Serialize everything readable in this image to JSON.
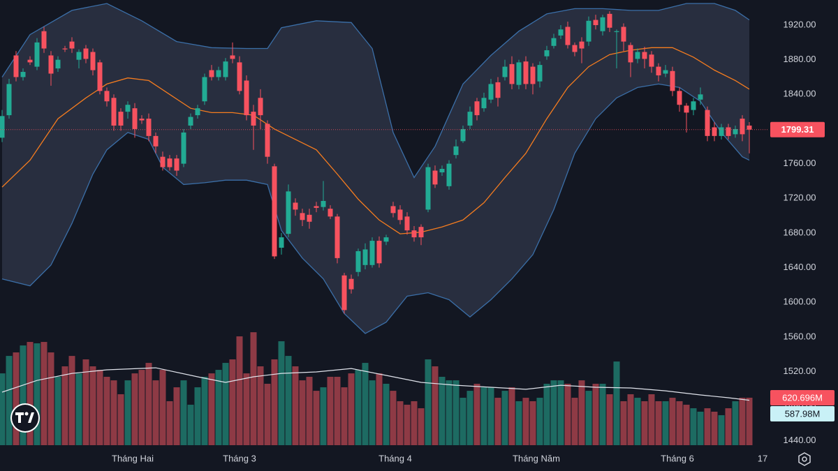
{
  "chart_data": {
    "type": "candlestick",
    "up_color": "#22ab94",
    "down_color": "#f7525f",
    "volume_up_color": "#1d6b62",
    "volume_down_color": "#8e3a45",
    "open": [
      1790,
      1816,
      1885,
      1860,
      1880,
      1872,
      1913,
      1885,
      1870,
      1893,
      1901,
      1880,
      1893,
      1889,
      1877,
      1844,
      1836,
      1820,
      1820,
      1824,
      1812,
      1812,
      1792,
      1768,
      1766,
      1766,
      1760,
      1804,
      1816,
      1832,
      1868,
      1860,
      1860,
      1885,
      1877,
      1856,
      1820,
      1836,
      1806,
      1757,
      1663,
      1679,
      1715,
      1703,
      1701,
      1711,
      1710,
      1708,
      1699,
      1631,
      1627,
      1635,
      1643,
      1643,
      1671,
      1670,
      1711,
      1707,
      1699,
      1683,
      1687,
      1707,
      1752,
      1750,
      1734,
      1770,
      1786,
      1804,
      1832,
      1824,
      1834,
      1854,
      1860,
      1875,
      1851,
      1878,
      1872,
      1855,
      1884,
      1896,
      1908,
      1918,
      1897,
      1901,
      1901,
      1926,
      1913,
      1933,
      1912,
      1918,
      1897,
      1881,
      1889,
      1886,
      1872,
      1864,
      1867,
      1844,
      1827,
      1822,
      1834,
      1822,
      1802,
      1792,
      1802,
      1794,
      1812,
      1804
    ],
    "high": [
      1822,
      1858,
      1890,
      1870,
      1884,
      1905,
      1918,
      1890,
      1884,
      1896,
      1906,
      1892,
      1897,
      1893,
      1880,
      1848,
      1840,
      1824,
      1832,
      1830,
      1816,
      1818,
      1796,
      1774,
      1770,
      1770,
      1800,
      1818,
      1828,
      1864,
      1874,
      1872,
      1882,
      1900,
      1884,
      1862,
      1828,
      1846,
      1810,
      1760,
      1680,
      1736,
      1720,
      1708,
      1708,
      1716,
      1740,
      1712,
      1702,
      1634,
      1632,
      1662,
      1668,
      1675,
      1676,
      1678,
      1716,
      1712,
      1704,
      1688,
      1690,
      1760,
      1758,
      1758,
      1764,
      1788,
      1804,
      1826,
      1836,
      1842,
      1858,
      1860,
      1880,
      1884,
      1880,
      1884,
      1876,
      1878,
      1896,
      1910,
      1920,
      1924,
      1900,
      1906,
      1930,
      1932,
      1932,
      1936,
      1915,
      1922,
      1900,
      1893,
      1895,
      1890,
      1876,
      1874,
      1872,
      1848,
      1830,
      1836,
      1848,
      1826,
      1808,
      1806,
      1806,
      1804,
      1816,
      1808
    ],
    "low": [
      1785,
      1812,
      1855,
      1856,
      1874,
      1868,
      1888,
      1850,
      1866,
      1889,
      1888,
      1870,
      1876,
      1862,
      1840,
      1826,
      1798,
      1798,
      1812,
      1790,
      1806,
      1786,
      1772,
      1752,
      1752,
      1746,
      1756,
      1800,
      1812,
      1828,
      1856,
      1856,
      1856,
      1876,
      1840,
      1810,
      1776,
      1800,
      1760,
      1650,
      1655,
      1675,
      1700,
      1688,
      1685,
      1704,
      1706,
      1696,
      1645,
      1587,
      1610,
      1630,
      1638,
      1640,
      1640,
      1666,
      1698,
      1690,
      1678,
      1670,
      1666,
      1704,
      1732,
      1746,
      1730,
      1766,
      1784,
      1800,
      1810,
      1820,
      1830,
      1826,
      1856,
      1846,
      1846,
      1846,
      1840,
      1848,
      1880,
      1893,
      1904,
      1893,
      1884,
      1876,
      1896,
      1915,
      1908,
      1912,
      1870,
      1890,
      1860,
      1876,
      1870,
      1865,
      1855,
      1860,
      1838,
      1820,
      1796,
      1816,
      1828,
      1786,
      1786,
      1788,
      1788,
      1790,
      1786,
      1772
    ],
    "close": [
      1815,
      1852,
      1860,
      1866,
      1877,
      1900,
      1893,
      1864,
      1880,
      1892,
      1893,
      1889,
      1881,
      1868,
      1844,
      1832,
      1804,
      1804,
      1828,
      1800,
      1810,
      1792,
      1780,
      1756,
      1756,
      1752,
      1796,
      1814,
      1824,
      1860,
      1860,
      1868,
      1878,
      1881,
      1844,
      1816,
      1804,
      1816,
      1768,
      1653,
      1675,
      1728,
      1707,
      1695,
      1693,
      1709,
      1717,
      1699,
      1651,
      1591,
      1615,
      1659,
      1661,
      1671,
      1645,
      1675,
      1703,
      1695,
      1683,
      1675,
      1675,
      1756,
      1736,
      1754,
      1760,
      1780,
      1800,
      1820,
      1816,
      1836,
      1852,
      1836,
      1872,
      1852,
      1877,
      1852,
      1852,
      1874,
      1891,
      1905,
      1915,
      1897,
      1889,
      1893,
      1925,
      1920,
      1929,
      1917,
      1913,
      1901,
      1877,
      1889,
      1881,
      1872,
      1862,
      1868,
      1844,
      1828,
      1819,
      1832,
      1840,
      1792,
      1792,
      1802,
      1792,
      1800,
      1794,
      1799.31
    ],
    "series": [
      {
        "name": "Volume",
        "axis": "y2",
        "last_label": "620.696M",
        "values": [
          939,
          1167,
          1213,
          1304,
          1350,
          1332,
          1350,
          1213,
          894,
          1031,
          1167,
          939,
          1122,
          1031,
          985,
          894,
          848,
          666,
          848,
          939,
          985,
          1076,
          848,
          985,
          575,
          757,
          848,
          529,
          757,
          894,
          939,
          985,
          1076,
          1122,
          1423,
          939,
          1477,
          1031,
          803,
          1122,
          1359,
          1167,
          1031,
          848,
          894,
          711,
          757,
          894,
          894,
          757,
          939,
          985,
          1076,
          848,
          939,
          803,
          711,
          575,
          529,
          575,
          483,
          1122,
          1031,
          894,
          848,
          848,
          620,
          711,
          803,
          757,
          757,
          620,
          711,
          757,
          575,
          620,
          575,
          620,
          803,
          848,
          848,
          803,
          620,
          848,
          711,
          803,
          803,
          666,
          1094,
          575,
          666,
          620,
          575,
          666,
          575,
          575,
          620,
          575,
          529,
          483,
          438,
          483,
          438,
          392,
          483,
          575,
          620,
          620.696
        ]
      },
      {
        "name": "Volume MA",
        "axis": "y2",
        "color": "#e0e3eb",
        "last_label": "587.98M",
        "x": [
          0,
          5,
          10,
          15,
          22,
          28,
          32,
          36,
          40,
          45,
          50,
          55,
          60,
          65,
          70,
          75,
          80,
          85,
          90,
          95,
          100,
          104,
          107
        ],
        "values": [
          693,
          847,
          939,
          985,
          1012,
          894,
          821,
          894,
          939,
          958,
          1003,
          912,
          821,
          784,
          757,
          731,
          784,
          757,
          748,
          711,
          657,
          620,
          587.98
        ]
      },
      {
        "name": "Upper",
        "color": "#3b6fa8",
        "x": [
          0,
          4,
          10,
          15,
          20,
          25,
          30,
          35,
          38,
          40,
          45,
          50,
          53,
          56,
          59,
          62,
          66,
          70,
          74,
          78,
          82,
          86,
          90,
          94,
          98,
          102,
          105,
          107
        ],
        "values": [
          1860,
          1909,
          1937,
          1945,
          1925,
          1901,
          1894,
          1893,
          1893,
          1917,
          1925,
          1923,
          1893,
          1796,
          1744,
          1780,
          1852,
          1885,
          1913,
          1933,
          1939,
          1939,
          1937,
          1937,
          1945,
          1945,
          1937,
          1926
        ]
      },
      {
        "name": "Basis",
        "color": "#f57c1f",
        "x": [
          0,
          4,
          8,
          12,
          15,
          18,
          21,
          24,
          27,
          30,
          33,
          36,
          39,
          42,
          45,
          48,
          51,
          54,
          57,
          60,
          63,
          66,
          69,
          72,
          75,
          78,
          81,
          84,
          87,
          90,
          93,
          96,
          99,
          102,
          105,
          107
        ],
        "values": [
          1733,
          1764,
          1812,
          1836,
          1852,
          1859,
          1856,
          1840,
          1824,
          1819,
          1819,
          1816,
          1800,
          1788,
          1776,
          1748,
          1719,
          1695,
          1679,
          1681,
          1687,
          1695,
          1715,
          1744,
          1772,
          1812,
          1848,
          1872,
          1886,
          1891,
          1894,
          1894,
          1883,
          1868,
          1856,
          1846
        ]
      },
      {
        "name": "Lower",
        "color": "#3b6fa8",
        "x": [
          0,
          4,
          7,
          10,
          13,
          15,
          18,
          21,
          23,
          26,
          29,
          32,
          35,
          38,
          40,
          43,
          46,
          49,
          52,
          55,
          58,
          61,
          64,
          67,
          70,
          73,
          76,
          79,
          82,
          85,
          88,
          91,
          94,
          97,
          100,
          103,
          106,
          107
        ],
        "values": [
          1627,
          1619,
          1643,
          1691,
          1748,
          1776,
          1796,
          1788,
          1756,
          1736,
          1738,
          1741,
          1741,
          1736,
          1683,
          1651,
          1627,
          1587,
          1564,
          1577,
          1607,
          1611,
          1603,
          1583,
          1603,
          1627,
          1655,
          1707,
          1772,
          1812,
          1836,
          1848,
          1852,
          1848,
          1832,
          1796,
          1768,
          1764
        ]
      }
    ],
    "band_fill": "rgba(120,134,170,0.22)",
    "xlim": [
      -0.3,
      109.7
    ],
    "xticks": [
      {
        "value": 18.7,
        "label": "Tháng Hai"
      },
      {
        "value": 34,
        "label": "Tháng 3"
      },
      {
        "value": 56.3,
        "label": "Tháng 4"
      },
      {
        "value": 76.5,
        "label": "Tháng Năm"
      },
      {
        "value": 96.7,
        "label": "Tháng 6"
      },
      {
        "value": 108.9,
        "label": "17"
      }
    ],
    "ylim": [
      1435,
      1949
    ],
    "yticks": [
      {
        "value": 1440,
        "label": "1440.00"
      },
      {
        "value": 1480,
        "label": "1480.00"
      },
      {
        "value": 1520,
        "label": "1520.00"
      },
      {
        "value": 1560,
        "label": "1560.00"
      },
      {
        "value": 1600,
        "label": "1600.00"
      },
      {
        "value": 1640,
        "label": "1640.00"
      },
      {
        "value": 1680,
        "label": "1680.00"
      },
      {
        "value": 1720,
        "label": "1720.00"
      },
      {
        "value": 1760,
        "label": "1760.00"
      },
      {
        "value": 1800,
        "label": "1800.00"
      },
      {
        "value": 1840,
        "label": "1840.00"
      },
      {
        "value": 1880,
        "label": "1880.00"
      },
      {
        "value": 1920,
        "label": "1920.00"
      }
    ],
    "hidden_yticks": [
      1800
    ],
    "y2lim": [
      0,
      5821
    ],
    "grid": false
  }
}
